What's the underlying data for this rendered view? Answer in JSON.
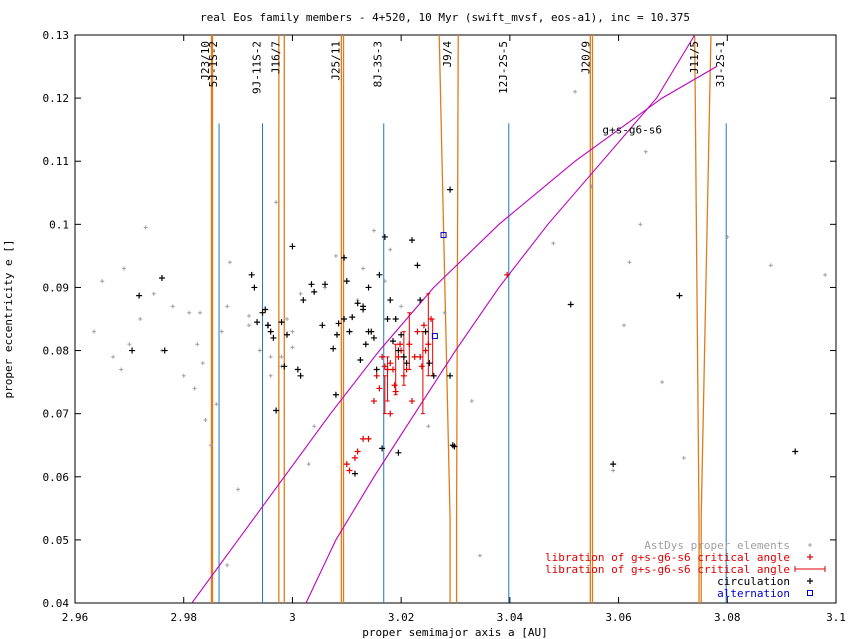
{
  "chart_data": {
    "type": "scatter",
    "title": "real Eos family members - 4+520, 10 Myr (swift_mvsf, eos-a1), inc = 10.375",
    "xlabel": "proper semimajor axis a [AU]",
    "ylabel": "proper eccentricity e []",
    "xlim": [
      2.96,
      3.1
    ],
    "ylim": [
      0.04,
      0.13
    ],
    "x_ticks": [
      {
        "v": 2.96,
        "label": "2.96"
      },
      {
        "v": 2.98,
        "label": "2.98"
      },
      {
        "v": 3.0,
        "label": "3"
      },
      {
        "v": 3.02,
        "label": "3.02"
      },
      {
        "v": 3.04,
        "label": "3.04"
      },
      {
        "v": 3.06,
        "label": "3.06"
      },
      {
        "v": 3.08,
        "label": "3.08"
      },
      {
        "v": 3.1,
        "label": "3.1"
      }
    ],
    "y_ticks": [
      {
        "v": 0.04,
        "label": "0.04"
      },
      {
        "v": 0.05,
        "label": "0.05"
      },
      {
        "v": 0.06,
        "label": "0.06"
      },
      {
        "v": 0.07,
        "label": "0.07"
      },
      {
        "v": 0.08,
        "label": "0.08"
      },
      {
        "v": 0.09,
        "label": "0.09"
      },
      {
        "v": 0.1,
        "label": "0.1"
      },
      {
        "v": 0.11,
        "label": "0.11"
      },
      {
        "v": 0.12,
        "label": "0.12"
      },
      {
        "v": 0.13,
        "label": "0.13"
      }
    ],
    "grid": false,
    "legend_position": "bottom-right",
    "resonance_labels": [
      {
        "label": "J23/10",
        "a": 2.985
      },
      {
        "label": "5J-1S-2",
        "a": 2.9865
      },
      {
        "label": "9J-11S-2",
        "a": 2.9945
      },
      {
        "label": "J16/7",
        "a": 2.998
      },
      {
        "label": "J25/11",
        "a": 3.009
      },
      {
        "label": "8J-3S-3",
        "a": 3.0168
      },
      {
        "label": "J9/4",
        "a": 3.0295
      },
      {
        "label": "12J-2S-5",
        "a": 3.0398
      },
      {
        "label": "J20/9",
        "a": 3.055
      },
      {
        "label": "J11/5",
        "a": 3.075
      },
      {
        "label": "3J-2S-1",
        "a": 3.0798
      }
    ],
    "three_body_lines": [
      {
        "label": "5J-1S-2",
        "a": 2.9865,
        "e_top": 0.116
      },
      {
        "label": "9J-11S-2",
        "a": 2.9945,
        "e_top": 0.116
      },
      {
        "label": "8J-3S-3",
        "a": 3.0168,
        "e_top": 0.116
      },
      {
        "label": "12J-2S-5",
        "a": 3.0398,
        "e_top": 0.116
      },
      {
        "label": "3J-2S-1",
        "a": 3.0798,
        "e_top": 0.116
      }
    ],
    "mean_motion_resonances": [
      {
        "label": "J23/10",
        "a_low": 2.9851,
        "a_high": 2.9853
      },
      {
        "label": "J16/7",
        "a_low": 2.9975,
        "a_high": 2.9985
      },
      {
        "label": "J25/11",
        "a_low": 3.009,
        "a_high": 3.0094
      },
      {
        "label": "J20/9",
        "a_low": 3.0548,
        "a_high": 3.0552
      },
      {
        "label": "J9/4",
        "a_low": 3.029,
        "a_high": 3.0302,
        "a_top_left": 3.027,
        "a_top_right": 3.0305
      },
      {
        "label": "J11/5",
        "a_low": 3.0748,
        "a_high": 3.0752,
        "a_top_left": 3.074,
        "a_top_right": 3.077
      }
    ],
    "secular_resonance": {
      "label": "g+s-g6-s6",
      "label_at": {
        "a": 3.0625,
        "e": 0.1144
      },
      "left": [
        [
          2.9815,
          0.04
        ],
        [
          2.99,
          0.05
        ],
        [
          2.9985,
          0.06
        ],
        [
          3.007,
          0.07
        ],
        [
          3.016,
          0.08
        ],
        [
          3.026,
          0.09
        ],
        [
          3.038,
          0.1
        ],
        [
          3.052,
          0.11
        ],
        [
          3.068,
          0.12
        ],
        [
          3.078,
          0.125
        ]
      ],
      "right": [
        [
          3.0025,
          0.04
        ],
        [
          3.008,
          0.05
        ],
        [
          3.015,
          0.06
        ],
        [
          3.0225,
          0.07
        ],
        [
          3.03,
          0.08
        ],
        [
          3.038,
          0.09
        ],
        [
          3.047,
          0.1
        ],
        [
          3.057,
          0.11
        ],
        [
          3.067,
          0.12
        ],
        [
          3.074,
          0.13
        ]
      ]
    },
    "series": [
      {
        "name": "AstDys proper elements",
        "color": "#a0a0a0",
        "marker": "plus-small",
        "x": [
          2.9635,
          2.965,
          2.967,
          2.9685,
          2.969,
          2.97,
          2.972,
          2.973,
          2.9745,
          2.976,
          2.978,
          2.98,
          2.981,
          2.982,
          2.983,
          2.984,
          2.985,
          2.988,
          2.987,
          2.988,
          2.99,
          2.992,
          2.994,
          2.996,
          2.997,
          2.998,
          2.999,
          3.0,
          3.001,
          3.003,
          3.004,
          3.006,
          3.008,
          3.012,
          3.013,
          3.015,
          3.017,
          3.018,
          3.02,
          3.025,
          3.028,
          3.033,
          3.0345,
          3.048,
          3.052,
          3.055,
          3.059,
          3.061,
          3.062,
          3.064,
          3.065,
          3.068,
          3.072,
          3.08,
          3.088,
          3.098,
          2.996,
          2.9885,
          2.986,
          2.9825,
          2.9835,
          2.992,
          3.0,
          3.0015,
          2.998
        ],
        "y": [
          0.083,
          0.091,
          0.079,
          0.077,
          0.093,
          0.081,
          0.085,
          0.0995,
          0.089,
          0.08,
          0.087,
          0.076,
          0.086,
          0.074,
          0.086,
          0.069,
          0.065,
          0.087,
          0.083,
          0.046,
          0.058,
          0.084,
          0.08,
          0.076,
          0.1035,
          0.079,
          0.085,
          0.083,
          0.077,
          0.062,
          0.068,
          0.09,
          0.095,
          0.088,
          0.093,
          0.099,
          0.091,
          0.096,
          0.087,
          0.068,
          0.086,
          0.072,
          0.0475,
          0.097,
          0.121,
          0.106,
          0.061,
          0.084,
          0.094,
          0.1,
          0.1115,
          0.075,
          0.063,
          0.098,
          0.0935,
          0.092,
          0.079,
          0.094,
          0.0715,
          0.081,
          0.078,
          0.0855,
          0.0805,
          0.089,
          0.0775
        ]
      },
      {
        "name": "libration of g+s-g6-s6 critical angle",
        "color": "#e00000",
        "marker": "plus",
        "x": [
          3.01,
          3.0105,
          3.0115,
          3.012,
          3.013,
          3.014,
          3.015,
          3.016,
          3.017,
          3.018,
          3.0185,
          3.0195,
          3.02,
          3.021,
          3.0215,
          3.0225,
          3.023,
          3.0235,
          3.0245,
          3.025,
          3.0255,
          3.018,
          3.019,
          3.0205,
          3.022,
          3.0175,
          3.0165,
          3.0198,
          3.0238,
          3.0242,
          3.0395,
          3.0155,
          3.0188
        ],
        "y": [
          0.062,
          0.061,
          0.063,
          0.064,
          0.066,
          0.066,
          0.072,
          0.074,
          0.0775,
          0.078,
          0.077,
          0.079,
          0.08,
          0.077,
          0.081,
          0.079,
          0.083,
          0.079,
          0.08,
          0.081,
          0.085,
          0.07,
          0.0735,
          0.076,
          0.072,
          0.077,
          0.079,
          0.081,
          0.0775,
          0.084,
          0.092,
          0.076,
          0.0745
        ]
      },
      {
        "name": "libration of g+s-g6-s6 critical angle",
        "color": "#e00000",
        "marker": "errorbar",
        "x": [
          3.017,
          3.0175,
          3.019,
          3.0205,
          3.0215,
          3.024,
          3.025,
          3.0258
        ],
        "y": [
          0.0725,
          0.075,
          0.076,
          0.079,
          0.081,
          0.076,
          0.082,
          0.079
        ],
        "y_low": [
          0.07,
          0.072,
          0.073,
          0.0745,
          0.077,
          0.07,
          0.076,
          0.076
        ],
        "y_high": [
          0.076,
          0.079,
          0.081,
          0.083,
          0.086,
          0.083,
          0.089,
          0.085
        ]
      },
      {
        "name": "circulation",
        "color": "#000000",
        "marker": "plus",
        "x": [
          2.9705,
          2.9718,
          2.976,
          2.9765,
          2.9925,
          2.993,
          2.9935,
          2.995,
          2.9955,
          2.996,
          2.997,
          2.998,
          2.9985,
          2.999,
          3.0,
          3.001,
          3.0015,
          3.002,
          3.004,
          3.006,
          3.0075,
          3.008,
          3.0082,
          3.0085,
          3.0095,
          3.011,
          3.012,
          3.013,
          3.014,
          3.015,
          3.016,
          3.017,
          3.018,
          3.019,
          3.02,
          3.021,
          3.022,
          3.023,
          3.0235,
          3.0245,
          3.0252,
          3.026,
          3.029,
          3.0298,
          3.0295,
          3.014,
          3.013,
          3.0135,
          3.0145,
          3.0155,
          3.0175,
          3.0185,
          3.0195,
          3.0205,
          3.0165,
          3.0125,
          3.01,
          3.0105,
          3.0195,
          3.0095,
          3.0115,
          3.0512,
          3.059,
          3.0712,
          3.0925,
          3.029,
          2.9945,
          2.9955,
          2.9965,
          3.0035,
          3.0055
        ],
        "y": [
          0.08,
          0.0887,
          0.0915,
          0.08,
          0.092,
          0.09,
          0.0845,
          0.0865,
          0.084,
          0.083,
          0.0705,
          0.0845,
          0.0775,
          0.0825,
          0.0965,
          0.077,
          0.076,
          0.088,
          0.0893,
          0.0905,
          0.0803,
          0.073,
          0.0825,
          0.0843,
          0.0947,
          0.0853,
          0.0875,
          0.0865,
          0.083,
          0.082,
          0.092,
          0.098,
          0.088,
          0.085,
          0.0825,
          0.078,
          0.0975,
          0.0935,
          0.088,
          0.083,
          0.078,
          0.076,
          0.1055,
          0.0648,
          0.065,
          0.09,
          0.087,
          0.081,
          0.083,
          0.077,
          0.085,
          0.0815,
          0.08,
          0.079,
          0.0645,
          0.0785,
          0.091,
          0.083,
          0.0638,
          0.085,
          0.0605,
          0.0873,
          0.062,
          0.0887,
          0.064,
          0.076,
          0.086,
          0.084,
          0.082,
          0.0905,
          0.084
        ]
      },
      {
        "name": "alternation",
        "color": "#0000cc",
        "marker": "square",
        "x": [
          3.0278,
          3.0262
        ],
        "y": [
          0.0983,
          0.0823
        ]
      }
    ]
  }
}
